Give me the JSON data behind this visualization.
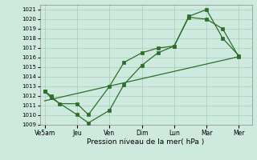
{
  "xlabel": "Pression niveau de la mer( hPa )",
  "background_color": "#ceeade",
  "grid_color": "#aacaba",
  "line_color": "#2d6e2d",
  "ylim": [
    1009,
    1021.5
  ],
  "yticks": [
    1009,
    1010,
    1011,
    1012,
    1013,
    1014,
    1015,
    1016,
    1017,
    1018,
    1019,
    1020,
    1021
  ],
  "xtick_labels": [
    "Ve5am",
    "Jeu",
    "Ven",
    "Dim",
    "Lun",
    "Mar",
    "Mer"
  ],
  "xtick_pos": [
    0,
    1,
    2,
    3,
    4,
    5,
    6
  ],
  "xlim": [
    -0.15,
    6.4
  ],
  "line1_x": [
    0,
    0.2,
    0.45,
    1.0,
    1.35,
    2.0,
    2.45,
    3.0,
    3.5,
    4.0,
    4.45,
    5.0,
    5.5,
    6.0
  ],
  "line1_y": [
    1012.5,
    1012.0,
    1011.2,
    1011.2,
    1010.05,
    1013.0,
    1015.5,
    1016.5,
    1017.0,
    1017.2,
    1020.3,
    1021.0,
    1018.0,
    1016.2
  ],
  "line2_x": [
    0,
    0.2,
    1.0,
    1.35,
    2.0,
    2.45,
    3.0,
    3.5,
    4.0,
    4.45,
    5.0,
    5.5,
    6.0
  ],
  "line2_y": [
    1012.5,
    1011.8,
    1010.05,
    1009.2,
    1010.5,
    1013.2,
    1015.2,
    1016.5,
    1017.2,
    1020.2,
    1020.0,
    1019.0,
    1016.05
  ],
  "line3_x": [
    0,
    6.0
  ],
  "line3_y": [
    1011.5,
    1016.1
  ]
}
